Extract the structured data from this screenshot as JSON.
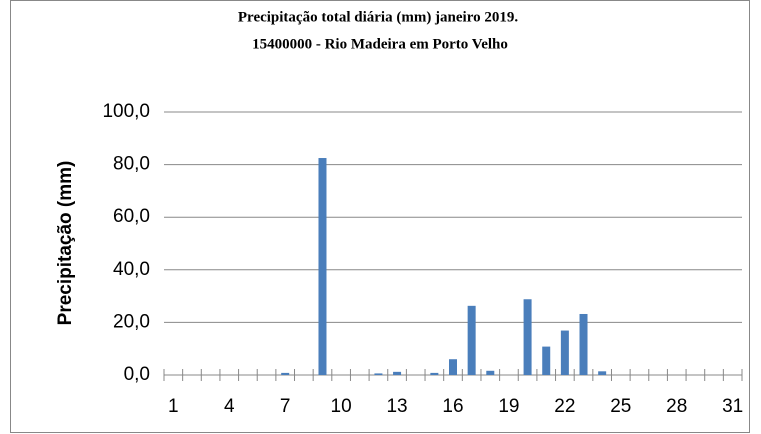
{
  "chart_data": {
    "type": "bar",
    "title": "Precipitação total diária (mm) janeiro 2019.",
    "subtitle": "15400000  - Rio Madeira em Porto Velho",
    "y_label": "Precipitação (mm)",
    "categories": [
      "1",
      null,
      null,
      "4",
      null,
      null,
      "7",
      null,
      null,
      "10",
      null,
      null,
      "13",
      null,
      null,
      "16",
      null,
      null,
      "19",
      null,
      null,
      "22",
      null,
      null,
      "25",
      null,
      null,
      "28",
      null,
      null,
      "31"
    ],
    "values": [
      0,
      0,
      0,
      0,
      0,
      0,
      0.8,
      0,
      82.5,
      0,
      0,
      0.6,
      1.2,
      0,
      0.8,
      6.0,
      26.3,
      1.6,
      0,
      28.8,
      10.8,
      16.9,
      23.2,
      1.4,
      0,
      0,
      0,
      0,
      0,
      0,
      0
    ],
    "color": "#4a7ebb",
    "ylim": [
      0,
      100
    ],
    "yticks": [
      {
        "value": 0,
        "label": "0,0"
      },
      {
        "value": 20,
        "label": "20,0"
      },
      {
        "value": 40,
        "label": "40,0"
      },
      {
        "value": 60,
        "label": "60,0"
      },
      {
        "value": 80,
        "label": "80,0"
      },
      {
        "value": 100,
        "label": "100,0"
      }
    ],
    "grid": true
  }
}
